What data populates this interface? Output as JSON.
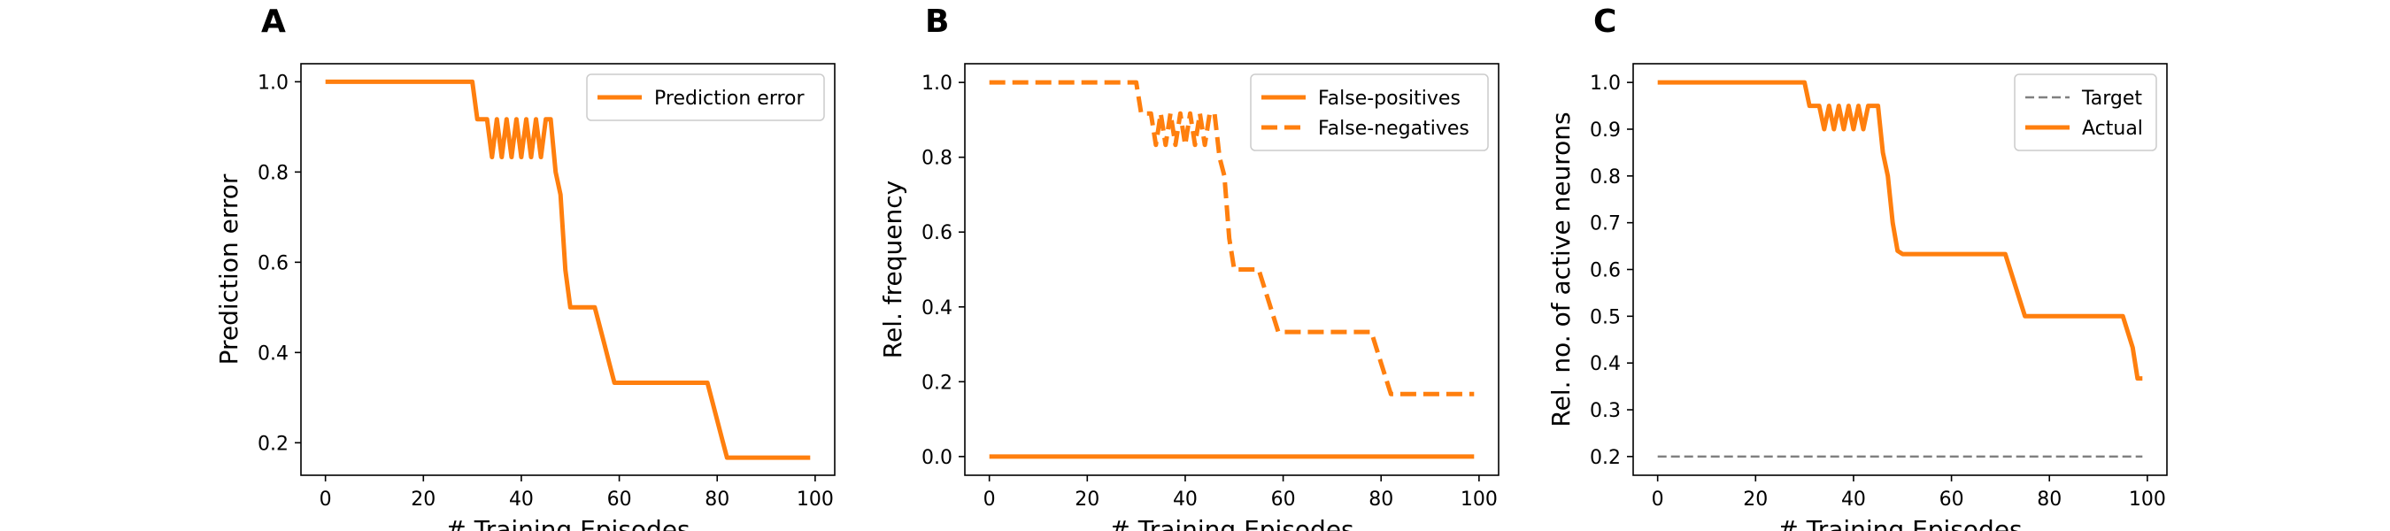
{
  "chart_data": [
    {
      "type": "line",
      "panel": "A",
      "xlabel": "# Training Episodes",
      "ylabel": "Prediction error",
      "xlim": [
        -5,
        104
      ],
      "ylim": [
        0.128,
        1.04
      ],
      "xticks": [
        0,
        20,
        40,
        60,
        80,
        100
      ],
      "yticks": [
        0.2,
        0.4,
        0.6,
        0.8,
        1.0
      ],
      "ytick_labels": [
        "0.2",
        "0.4",
        "0.6",
        "0.8",
        "1.0"
      ],
      "grid": false,
      "legend": "top-right",
      "series": [
        {
          "name": "Prediction error",
          "color": "#ff7f0e",
          "style": "solid",
          "x": [
            0,
            30,
            31,
            33,
            34,
            35,
            36,
            37,
            38,
            39,
            40,
            41,
            42,
            43,
            44,
            45,
            46,
            47,
            48,
            49,
            50,
            51,
            53,
            54,
            55,
            57,
            58,
            59,
            60,
            62,
            64,
            66,
            68,
            70,
            72,
            74,
            76,
            78,
            80,
            81,
            82,
            84,
            86,
            88,
            90,
            92,
            94,
            96,
            98,
            99
          ],
          "y": [
            1.0,
            1.0,
            0.917,
            0.917,
            0.833,
            0.917,
            0.833,
            0.917,
            0.833,
            0.917,
            0.833,
            0.917,
            0.833,
            0.917,
            0.833,
            0.917,
            0.917,
            0.8,
            0.75,
            0.583,
            0.5,
            0.5,
            0.5,
            0.5,
            0.5,
            0.417,
            0.375,
            0.333,
            0.333,
            0.333,
            0.333,
            0.333,
            0.333,
            0.333,
            0.333,
            0.333,
            0.333,
            0.333,
            0.25,
            0.208,
            0.167,
            0.167,
            0.167,
            0.167,
            0.167,
            0.167,
            0.167,
            0.167,
            0.167,
            0.167
          ]
        }
      ]
    },
    {
      "type": "line",
      "panel": "B",
      "xlabel": "# Training Episodes",
      "ylabel": "Rel. frequency",
      "xlim": [
        -5,
        104
      ],
      "ylim": [
        -0.05,
        1.05
      ],
      "xticks": [
        0,
        20,
        40,
        60,
        80,
        100
      ],
      "yticks": [
        0.0,
        0.2,
        0.4,
        0.6,
        0.8,
        1.0
      ],
      "ytick_labels": [
        "0.0",
        "0.2",
        "0.4",
        "0.6",
        "0.8",
        "1.0"
      ],
      "grid": false,
      "legend": "top-right",
      "series": [
        {
          "name": "False-positives",
          "color": "#ff7f0e",
          "style": "solid",
          "x": [
            0,
            99
          ],
          "y": [
            0.0,
            0.0
          ]
        },
        {
          "name": "False-negatives",
          "color": "#ff7f0e",
          "style": "dashed",
          "x": [
            0,
            30,
            31,
            33,
            34,
            35,
            36,
            37,
            38,
            39,
            40,
            41,
            42,
            43,
            44,
            45,
            46,
            47,
            48,
            49,
            50,
            51,
            53,
            54,
            55,
            57,
            58,
            59,
            60,
            62,
            64,
            66,
            68,
            70,
            72,
            74,
            76,
            78,
            80,
            81,
            82,
            84,
            86,
            88,
            90,
            92,
            94,
            96,
            98,
            99
          ],
          "y": [
            1.0,
            1.0,
            0.917,
            0.917,
            0.833,
            0.917,
            0.833,
            0.917,
            0.833,
            0.917,
            0.833,
            0.917,
            0.833,
            0.917,
            0.833,
            0.917,
            0.917,
            0.8,
            0.75,
            0.583,
            0.5,
            0.5,
            0.5,
            0.5,
            0.5,
            0.417,
            0.375,
            0.333,
            0.333,
            0.333,
            0.333,
            0.333,
            0.333,
            0.333,
            0.333,
            0.333,
            0.333,
            0.333,
            0.25,
            0.208,
            0.167,
            0.167,
            0.167,
            0.167,
            0.167,
            0.167,
            0.167,
            0.167,
            0.167,
            0.167
          ]
        }
      ]
    },
    {
      "type": "line",
      "panel": "C",
      "xlabel": "# Training Episodes",
      "ylabel": "Rel. no. of active neurons",
      "xlim": [
        -5,
        104
      ],
      "ylim": [
        0.16,
        1.04
      ],
      "xticks": [
        0,
        20,
        40,
        60,
        80,
        100
      ],
      "yticks": [
        0.2,
        0.3,
        0.4,
        0.5,
        0.6,
        0.7,
        0.8,
        0.9,
        1.0
      ],
      "ytick_labels": [
        "0.2",
        "0.3",
        "0.4",
        "0.5",
        "0.6",
        "0.7",
        "0.8",
        "0.9",
        "1.0"
      ],
      "grid": false,
      "legend": "top-right",
      "series": [
        {
          "name": "Target",
          "color": "#808080",
          "style": "dashed-thin",
          "x": [
            0,
            99
          ],
          "y": [
            0.2,
            0.2
          ]
        },
        {
          "name": "Actual",
          "color": "#ff7f0e",
          "style": "solid",
          "x": [
            0,
            30,
            31,
            33,
            34,
            35,
            36,
            37,
            38,
            39,
            40,
            41,
            42,
            43,
            44,
            45,
            46,
            47,
            48,
            49,
            50,
            51,
            55,
            60,
            65,
            70,
            71,
            75,
            80,
            85,
            90,
            94,
            95,
            97,
            98,
            99
          ],
          "y": [
            1.0,
            1.0,
            0.95,
            0.95,
            0.9,
            0.95,
            0.9,
            0.95,
            0.9,
            0.95,
            0.9,
            0.95,
            0.9,
            0.95,
            0.95,
            0.95,
            0.85,
            0.8,
            0.7,
            0.64,
            0.633,
            0.633,
            0.633,
            0.633,
            0.633,
            0.633,
            0.633,
            0.5,
            0.5,
            0.5,
            0.5,
            0.5,
            0.5,
            0.433,
            0.367,
            0.367
          ]
        }
      ]
    }
  ]
}
